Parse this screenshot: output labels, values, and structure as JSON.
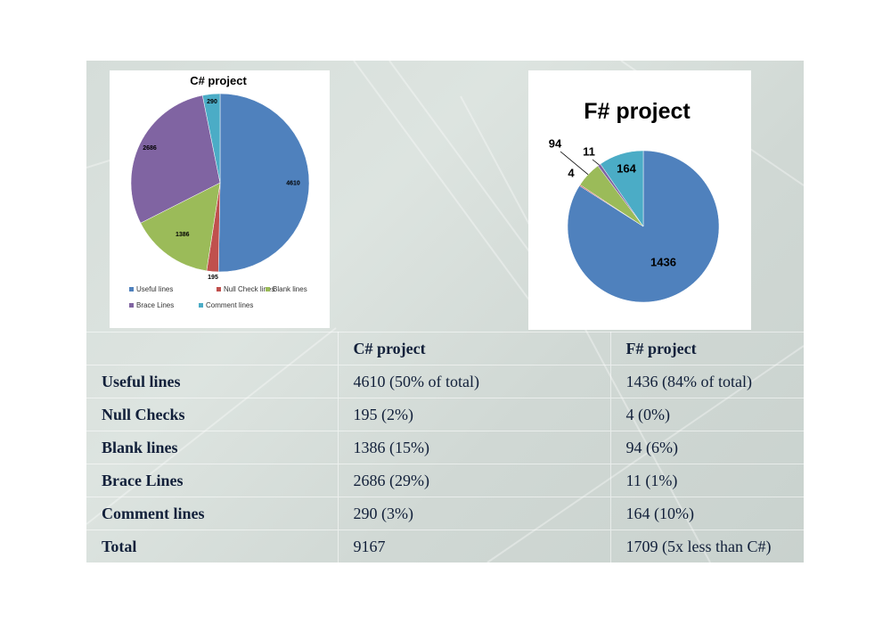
{
  "chart_data": [
    {
      "type": "pie",
      "title": "C# project",
      "categories": [
        "Useful lines",
        "Null Check lines",
        "Blank lines",
        "Brace Lines",
        "Comment lines"
      ],
      "values": [
        4610,
        195,
        1386,
        2686,
        290
      ],
      "colors": [
        "#4f81bd",
        "#c0504d",
        "#9bbb59",
        "#8064a2",
        "#4bacc6"
      ],
      "data_labels": [
        "4610",
        "195",
        "1386",
        "2686",
        "290"
      ],
      "legend": [
        "Useful lines",
        "Null Check lines",
        "Blank lines",
        "Brace Lines",
        "Comment lines"
      ],
      "legend_position": "bottom"
    },
    {
      "type": "pie",
      "title": "F# project",
      "values": [
        1436,
        4,
        94,
        11,
        164
      ],
      "colors": [
        "#4f81bd",
        "#c0504d",
        "#9bbb59",
        "#8064a2",
        "#4bacc6"
      ],
      "data_labels": [
        "1436",
        "4",
        "94",
        "11",
        "164"
      ]
    }
  ],
  "table": {
    "headers": [
      "",
      "C# project",
      "F# project"
    ],
    "rows": [
      [
        "Useful lines",
        "4610 (50% of total)",
        "1436 (84% of total)"
      ],
      [
        "Null Checks",
        "195 (2%)",
        "4 (0%)"
      ],
      [
        "Blank lines",
        "1386 (15%)",
        "94 (6%)"
      ],
      [
        "Brace Lines",
        "2686 (29%)",
        "11 (1%)"
      ],
      [
        "Comment lines",
        "290 (3%)",
        "164 (10%)"
      ],
      [
        "Total",
        "9167",
        "1709 (5x less than C#)"
      ]
    ]
  }
}
